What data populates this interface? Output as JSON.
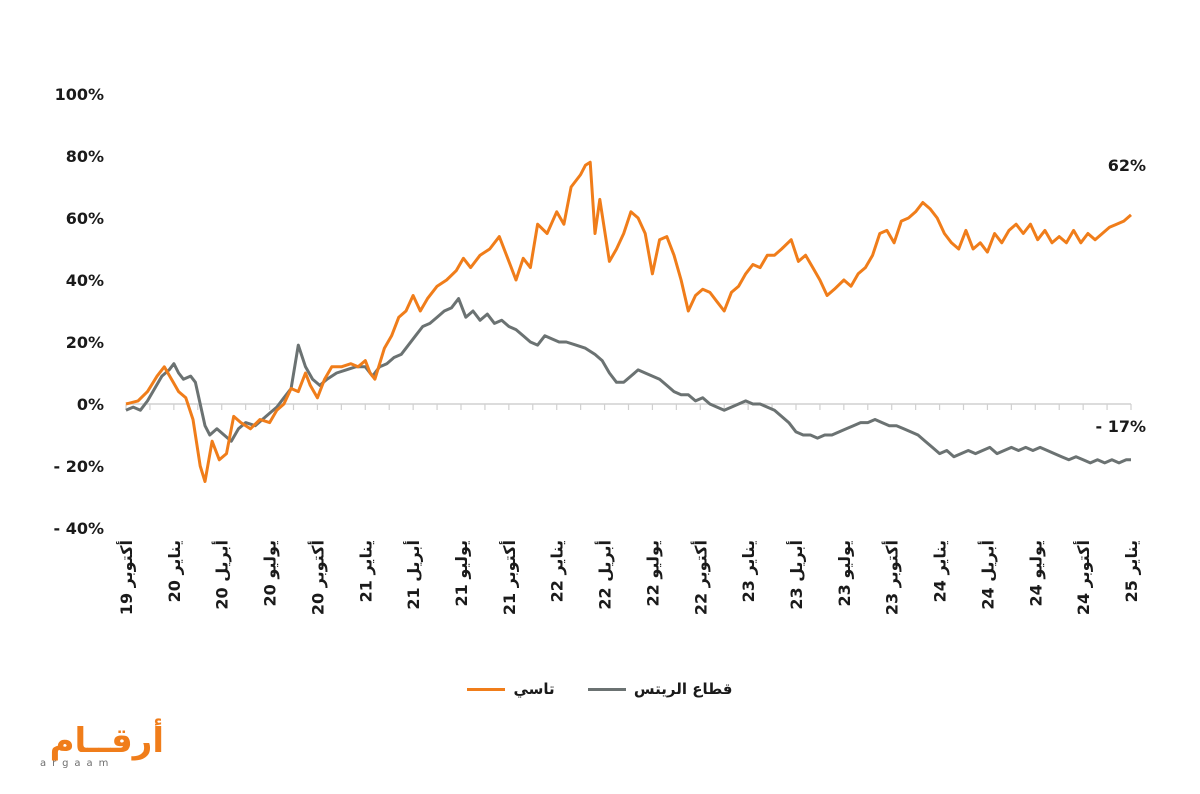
{
  "chart_data": {
    "type": "line",
    "title": "",
    "xlabel": "",
    "ylabel": "",
    "ylim": [
      -40,
      100
    ],
    "yticks": [
      100,
      80,
      60,
      40,
      20,
      0,
      -20,
      -40
    ],
    "ytick_labels": [
      "100%",
      "80%",
      "60%",
      "40%",
      "20%",
      "0%",
      "- 20%",
      "- 40%"
    ],
    "grid": false,
    "x_range": [
      0,
      21
    ],
    "x_ticks": [
      {
        "pos": 0,
        "label": "19 أكتوبر"
      },
      {
        "pos": 1,
        "label": "20 يناير"
      },
      {
        "pos": 2,
        "label": "20 أبريل"
      },
      {
        "pos": 3,
        "label": "20 يوليو"
      },
      {
        "pos": 4,
        "label": "20 أكتوبر"
      },
      {
        "pos": 5,
        "label": "21 يناير"
      },
      {
        "pos": 6,
        "label": "21 أبريل"
      },
      {
        "pos": 7,
        "label": "21 يوليو"
      },
      {
        "pos": 8,
        "label": "21 أكتوبر"
      },
      {
        "pos": 9,
        "label": "22 يناير"
      },
      {
        "pos": 10,
        "label": "22 أبريل"
      },
      {
        "pos": 11,
        "label": "22 يوليو"
      },
      {
        "pos": 12,
        "label": "22 أكتوبر"
      },
      {
        "pos": 13,
        "label": "23 يناير"
      },
      {
        "pos": 14,
        "label": "23 أبريل"
      },
      {
        "pos": 15,
        "label": "23 يوليو"
      },
      {
        "pos": 16,
        "label": "23 أكتوبر"
      },
      {
        "pos": 17,
        "label": "24 يناير"
      },
      {
        "pos": 18,
        "label": "24 أبريل"
      },
      {
        "pos": 19,
        "label": "24 يوليو"
      },
      {
        "pos": 20,
        "label": "24 أكتوبر"
      },
      {
        "pos": 21,
        "label": "25 يناير"
      }
    ],
    "legend_position": "bottom-center",
    "series": [
      {
        "name": "تاسي",
        "color": "#f07d1a",
        "end_label": "62%",
        "points": [
          [
            0.0,
            0
          ],
          [
            0.25,
            1
          ],
          [
            0.45,
            4
          ],
          [
            0.65,
            9
          ],
          [
            0.8,
            12
          ],
          [
            0.95,
            8
          ],
          [
            1.1,
            4
          ],
          [
            1.25,
            2
          ],
          [
            1.4,
            -5
          ],
          [
            1.55,
            -20
          ],
          [
            1.65,
            -25
          ],
          [
            1.8,
            -12
          ],
          [
            1.95,
            -18
          ],
          [
            2.1,
            -16
          ],
          [
            2.25,
            -4
          ],
          [
            2.4,
            -6
          ],
          [
            2.6,
            -8
          ],
          [
            2.8,
            -5
          ],
          [
            3.0,
            -6
          ],
          [
            3.15,
            -2
          ],
          [
            3.3,
            0
          ],
          [
            3.45,
            5
          ],
          [
            3.6,
            4
          ],
          [
            3.75,
            10
          ],
          [
            3.85,
            6
          ],
          [
            4.0,
            2
          ],
          [
            4.15,
            8
          ],
          [
            4.3,
            12
          ],
          [
            4.5,
            12
          ],
          [
            4.7,
            13
          ],
          [
            4.85,
            12
          ],
          [
            5.0,
            14
          ],
          [
            5.1,
            10
          ],
          [
            5.2,
            8
          ],
          [
            5.4,
            18
          ],
          [
            5.55,
            22
          ],
          [
            5.7,
            28
          ],
          [
            5.85,
            30
          ],
          [
            6.0,
            35
          ],
          [
            6.15,
            30
          ],
          [
            6.3,
            34
          ],
          [
            6.5,
            38
          ],
          [
            6.7,
            40
          ],
          [
            6.9,
            43
          ],
          [
            7.05,
            47
          ],
          [
            7.2,
            44
          ],
          [
            7.4,
            48
          ],
          [
            7.6,
            50
          ],
          [
            7.8,
            54
          ],
          [
            8.0,
            46
          ],
          [
            8.15,
            40
          ],
          [
            8.3,
            47
          ],
          [
            8.45,
            44
          ],
          [
            8.6,
            58
          ],
          [
            8.8,
            55
          ],
          [
            9.0,
            62
          ],
          [
            9.15,
            58
          ],
          [
            9.3,
            70
          ],
          [
            9.5,
            74
          ],
          [
            9.6,
            77
          ],
          [
            9.7,
            78
          ],
          [
            9.8,
            55
          ],
          [
            9.9,
            66
          ],
          [
            10.0,
            56
          ],
          [
            10.1,
            46
          ],
          [
            10.25,
            50
          ],
          [
            10.4,
            55
          ],
          [
            10.55,
            62
          ],
          [
            10.7,
            60
          ],
          [
            10.85,
            55
          ],
          [
            11.0,
            42
          ],
          [
            11.15,
            53
          ],
          [
            11.3,
            54
          ],
          [
            11.45,
            48
          ],
          [
            11.6,
            40
          ],
          [
            11.75,
            30
          ],
          [
            11.9,
            35
          ],
          [
            12.05,
            37
          ],
          [
            12.2,
            36
          ],
          [
            12.35,
            33
          ],
          [
            12.5,
            30
          ],
          [
            12.65,
            36
          ],
          [
            12.8,
            38
          ],
          [
            12.95,
            42
          ],
          [
            13.1,
            45
          ],
          [
            13.25,
            44
          ],
          [
            13.4,
            48
          ],
          [
            13.55,
            48
          ],
          [
            13.7,
            50
          ],
          [
            13.9,
            53
          ],
          [
            14.05,
            46
          ],
          [
            14.2,
            48
          ],
          [
            14.35,
            44
          ],
          [
            14.5,
            40
          ],
          [
            14.65,
            35
          ],
          [
            14.8,
            37
          ],
          [
            15.0,
            40
          ],
          [
            15.15,
            38
          ],
          [
            15.3,
            42
          ],
          [
            15.45,
            44
          ],
          [
            15.6,
            48
          ],
          [
            15.75,
            55
          ],
          [
            15.9,
            56
          ],
          [
            16.05,
            52
          ],
          [
            16.2,
            59
          ],
          [
            16.35,
            60
          ],
          [
            16.5,
            62
          ],
          [
            16.65,
            65
          ],
          [
            16.8,
            63
          ],
          [
            16.95,
            60
          ],
          [
            17.1,
            55
          ],
          [
            17.25,
            52
          ],
          [
            17.4,
            50
          ],
          [
            17.55,
            56
          ],
          [
            17.7,
            50
          ],
          [
            17.85,
            52
          ],
          [
            18.0,
            49
          ],
          [
            18.15,
            55
          ],
          [
            18.3,
            52
          ],
          [
            18.45,
            56
          ],
          [
            18.6,
            58
          ],
          [
            18.75,
            55
          ],
          [
            18.9,
            58
          ],
          [
            19.05,
            53
          ],
          [
            19.2,
            56
          ],
          [
            19.35,
            52
          ],
          [
            19.5,
            54
          ],
          [
            19.65,
            52
          ],
          [
            19.8,
            56
          ],
          [
            19.95,
            52
          ],
          [
            20.1,
            55
          ],
          [
            20.25,
            53
          ],
          [
            20.4,
            55
          ],
          [
            20.55,
            57
          ],
          [
            20.7,
            58
          ],
          [
            20.85,
            59
          ],
          [
            21.0,
            61
          ]
        ]
      },
      {
        "name": "قطاع الريتس",
        "color": "#6b7272",
        "end_label": "- 17%",
        "points": [
          [
            0.0,
            -2
          ],
          [
            0.15,
            -1
          ],
          [
            0.3,
            -2
          ],
          [
            0.45,
            1
          ],
          [
            0.6,
            5
          ],
          [
            0.75,
            9
          ],
          [
            0.9,
            11
          ],
          [
            1.0,
            13
          ],
          [
            1.1,
            10
          ],
          [
            1.2,
            8
          ],
          [
            1.35,
            9
          ],
          [
            1.45,
            7
          ],
          [
            1.55,
            0
          ],
          [
            1.65,
            -7
          ],
          [
            1.75,
            -10
          ],
          [
            1.9,
            -8
          ],
          [
            2.05,
            -10
          ],
          [
            2.2,
            -12
          ],
          [
            2.35,
            -8
          ],
          [
            2.5,
            -6
          ],
          [
            2.7,
            -7
          ],
          [
            2.85,
            -5
          ],
          [
            3.0,
            -3
          ],
          [
            3.15,
            -1
          ],
          [
            3.3,
            2
          ],
          [
            3.45,
            5
          ],
          [
            3.6,
            19
          ],
          [
            3.75,
            12
          ],
          [
            3.9,
            8
          ],
          [
            4.05,
            6
          ],
          [
            4.2,
            8
          ],
          [
            4.4,
            10
          ],
          [
            4.6,
            11
          ],
          [
            4.8,
            12
          ],
          [
            5.0,
            12
          ],
          [
            5.15,
            9
          ],
          [
            5.3,
            12
          ],
          [
            5.45,
            13
          ],
          [
            5.6,
            15
          ],
          [
            5.75,
            16
          ],
          [
            5.9,
            19
          ],
          [
            6.05,
            22
          ],
          [
            6.2,
            25
          ],
          [
            6.35,
            26
          ],
          [
            6.5,
            28
          ],
          [
            6.65,
            30
          ],
          [
            6.8,
            31
          ],
          [
            6.95,
            34
          ],
          [
            7.1,
            28
          ],
          [
            7.25,
            30
          ],
          [
            7.4,
            27
          ],
          [
            7.55,
            29
          ],
          [
            7.7,
            26
          ],
          [
            7.85,
            27
          ],
          [
            8.0,
            25
          ],
          [
            8.15,
            24
          ],
          [
            8.3,
            22
          ],
          [
            8.45,
            20
          ],
          [
            8.6,
            19
          ],
          [
            8.75,
            22
          ],
          [
            8.9,
            21
          ],
          [
            9.05,
            20
          ],
          [
            9.2,
            20
          ],
          [
            9.4,
            19
          ],
          [
            9.6,
            18
          ],
          [
            9.8,
            16
          ],
          [
            9.95,
            14
          ],
          [
            10.1,
            10
          ],
          [
            10.25,
            7
          ],
          [
            10.4,
            7
          ],
          [
            10.55,
            9
          ],
          [
            10.7,
            11
          ],
          [
            10.85,
            10
          ],
          [
            11.0,
            9
          ],
          [
            11.15,
            8
          ],
          [
            11.3,
            6
          ],
          [
            11.45,
            4
          ],
          [
            11.6,
            3
          ],
          [
            11.75,
            3
          ],
          [
            11.9,
            1
          ],
          [
            12.05,
            2
          ],
          [
            12.2,
            0
          ],
          [
            12.35,
            -1
          ],
          [
            12.5,
            -2
          ],
          [
            12.65,
            -1
          ],
          [
            12.8,
            0
          ],
          [
            12.95,
            1
          ],
          [
            13.1,
            0
          ],
          [
            13.25,
            0
          ],
          [
            13.4,
            -1
          ],
          [
            13.55,
            -2
          ],
          [
            13.7,
            -4
          ],
          [
            13.85,
            -6
          ],
          [
            14.0,
            -9
          ],
          [
            14.15,
            -10
          ],
          [
            14.3,
            -10
          ],
          [
            14.45,
            -11
          ],
          [
            14.6,
            -10
          ],
          [
            14.75,
            -10
          ],
          [
            14.9,
            -9
          ],
          [
            15.05,
            -8
          ],
          [
            15.2,
            -7
          ],
          [
            15.35,
            -6
          ],
          [
            15.5,
            -6
          ],
          [
            15.65,
            -5
          ],
          [
            15.8,
            -6
          ],
          [
            15.95,
            -7
          ],
          [
            16.1,
            -7
          ],
          [
            16.25,
            -8
          ],
          [
            16.4,
            -9
          ],
          [
            16.55,
            -10
          ],
          [
            16.7,
            -12
          ],
          [
            16.85,
            -14
          ],
          [
            17.0,
            -16
          ],
          [
            17.15,
            -15
          ],
          [
            17.3,
            -17
          ],
          [
            17.45,
            -16
          ],
          [
            17.6,
            -15
          ],
          [
            17.75,
            -16
          ],
          [
            17.9,
            -15
          ],
          [
            18.05,
            -14
          ],
          [
            18.2,
            -16
          ],
          [
            18.35,
            -15
          ],
          [
            18.5,
            -14
          ],
          [
            18.65,
            -15
          ],
          [
            18.8,
            -14
          ],
          [
            18.95,
            -15
          ],
          [
            19.1,
            -14
          ],
          [
            19.25,
            -15
          ],
          [
            19.4,
            -16
          ],
          [
            19.55,
            -17
          ],
          [
            19.7,
            -18
          ],
          [
            19.85,
            -17
          ],
          [
            20.0,
            -18
          ],
          [
            20.15,
            -19
          ],
          [
            20.3,
            -18
          ],
          [
            20.45,
            -19
          ],
          [
            20.6,
            -18
          ],
          [
            20.75,
            -19
          ],
          [
            20.9,
            -18
          ],
          [
            21.0,
            -18
          ]
        ]
      }
    ]
  },
  "logo": {
    "text_ar": "أرقــام",
    "text_en": "argaam"
  }
}
